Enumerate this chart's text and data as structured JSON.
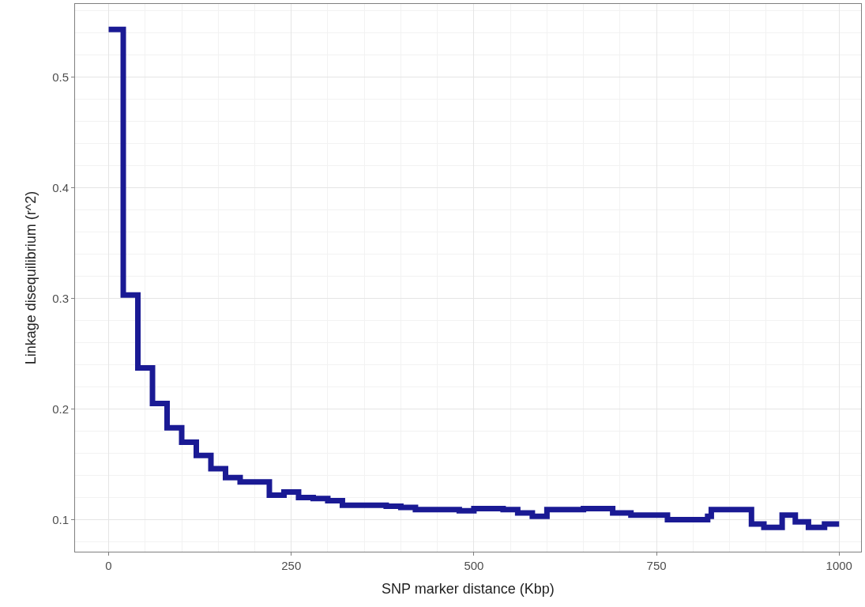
{
  "chart_data": {
    "type": "step",
    "xlabel": "SNP marker distance (Kbp)",
    "ylabel": "Linkage disequilibrium (r^2)",
    "x": [
      0,
      20,
      40,
      60,
      80,
      100,
      120,
      140,
      160,
      180,
      220,
      240,
      260,
      280,
      300,
      320,
      380,
      400,
      420,
      480,
      500,
      540,
      560,
      580,
      600,
      650,
      690,
      715,
      765,
      820,
      825,
      880,
      897,
      922,
      940,
      958,
      980,
      1000
    ],
    "series": [
      {
        "color": "#1a1a94",
        "values": [
          0.543,
          0.303,
          0.237,
          0.205,
          0.183,
          0.17,
          0.158,
          0.146,
          0.138,
          0.134,
          0.122,
          0.125,
          0.12,
          0.119,
          0.117,
          0.113,
          0.112,
          0.111,
          0.109,
          0.108,
          0.11,
          0.109,
          0.106,
          0.103,
          0.109,
          0.11,
          0.106,
          0.104,
          0.1,
          0.103,
          0.109,
          0.096,
          0.093,
          0.104,
          0.098,
          0.093,
          0.096,
          0.096
        ]
      }
    ],
    "xlim": [
      -46,
      1030
    ],
    "ylim": [
      0.071,
      0.566
    ],
    "xticks": [
      0,
      250,
      500,
      750,
      1000
    ],
    "yticks": [
      0.1,
      0.2,
      0.3,
      0.4,
      0.5
    ],
    "grid": true,
    "line_style": "solid",
    "marker": "none"
  }
}
